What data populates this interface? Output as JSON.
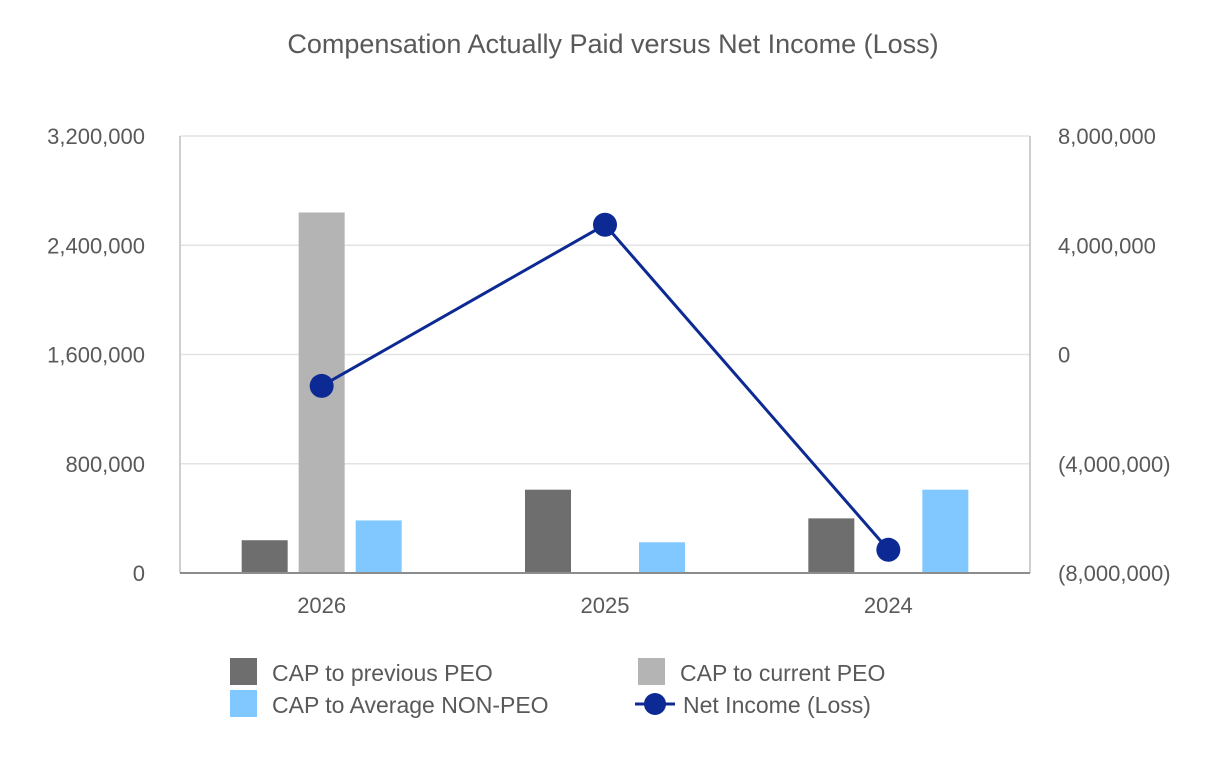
{
  "chart_data": {
    "type": "bar",
    "title": "Compensation Actually Paid versus Net Income (Loss)",
    "categories": [
      "2026",
      "2025",
      "2024"
    ],
    "y_left": {
      "ticks": [
        0,
        800000,
        1600000,
        2400000,
        3200000
      ],
      "tick_labels": [
        "0",
        "800,000",
        "1,600,000",
        "2,400,000",
        "3,200,000"
      ],
      "ylim": [
        0,
        3200000
      ]
    },
    "y_right": {
      "ticks": [
        -8000000,
        -4000000,
        0,
        4000000,
        8000000
      ],
      "tick_labels": [
        "(8,000,000)",
        "(4,000,000)",
        "0",
        "4,000,000",
        "8,000,000"
      ],
      "ylim": [
        -8000000,
        8000000
      ]
    },
    "grid": true,
    "legend_position": "bottom",
    "series": [
      {
        "name": "CAP to previous PEO",
        "type": "bar",
        "axis": "left",
        "color": "#6e6e6e",
        "values": [
          240000,
          610000,
          400000
        ]
      },
      {
        "name": "CAP to current PEO",
        "type": "bar",
        "axis": "left",
        "color": "#b4b4b4",
        "values": [
          2640000,
          null,
          null
        ]
      },
      {
        "name": "CAP to Average NON-PEO",
        "type": "bar",
        "axis": "left",
        "color": "#80c8ff",
        "values": [
          385000,
          225000,
          610000
        ]
      },
      {
        "name": "Net Income (Loss)",
        "type": "line",
        "axis": "right",
        "color": "#0d2a94",
        "values": [
          -1150000,
          4750000,
          -7150000
        ]
      }
    ]
  }
}
